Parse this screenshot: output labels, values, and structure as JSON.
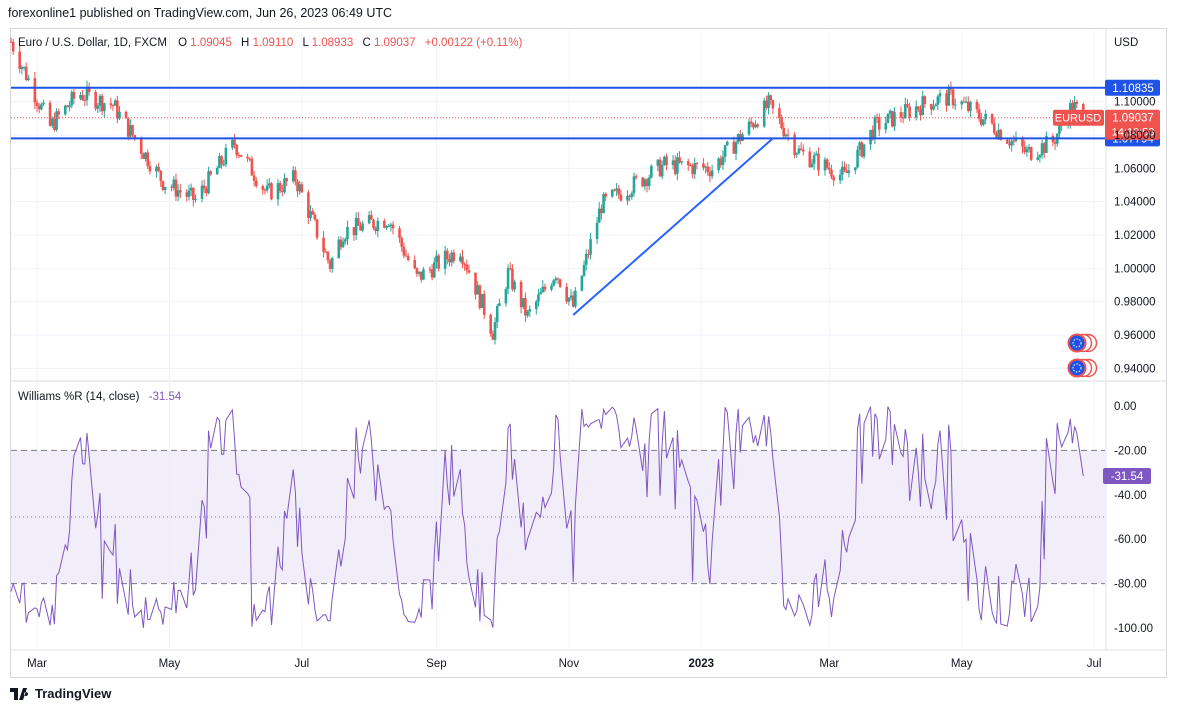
{
  "publisher_line": "forexonline1 published on TradingView.com, Jun 26, 2023 06:49 UTC",
  "symbol_line": {
    "name": "Euro / U.S. Dollar, 1D, FXCM",
    "o_label": "O",
    "o": "1.09045",
    "h_label": "H",
    "h": "1.09110",
    "l_label": "L",
    "l": "1.08933",
    "c_label": "C",
    "c": "1.09037",
    "change": "+0.00122 (+0.11%)"
  },
  "currency": "USD",
  "colors": {
    "up": "#26a69a",
    "down": "#ef5350",
    "line": "#2962ff",
    "level": "#1e53e5",
    "wpr": "#7e57c2",
    "wpr_band": "#ede7f6",
    "price_tag": "#ef5350"
  },
  "chart_data": {
    "type": "candlestick",
    "price_axis": {
      "ticks": [
        "1.10000",
        "1.08000",
        "1.06000",
        "1.04000",
        "1.02000",
        "1.00000",
        "0.98000",
        "0.96000",
        "0.94000"
      ],
      "tick_values": [
        1.1,
        1.08,
        1.06,
        1.04,
        1.02,
        1.0,
        0.98,
        0.96,
        0.94
      ]
    },
    "time_axis": [
      "Mar",
      "May",
      "Jul",
      "Sep",
      "Nov",
      "2023",
      "Mar",
      "May",
      "Jul"
    ],
    "levels": [
      {
        "value": 1.10835,
        "label": "1.10835"
      },
      {
        "value": 1.07794,
        "label": "1.07794"
      }
    ],
    "trendline": {
      "from": {
        "date": "2022-11-03",
        "price": 0.972
      },
      "to": {
        "date": "2023-02-03",
        "price": 1.078
      }
    },
    "last_price": {
      "symbol": "EURUSD",
      "price": "1.09037",
      "countdown": "14:10:53",
      "value": 1.09037
    },
    "close_path": [
      {
        "date": "2022-02-17",
        "close": 1.136
      },
      {
        "date": "2022-03-07",
        "close": 1.085
      },
      {
        "date": "2022-03-20",
        "close": 1.105
      },
      {
        "date": "2022-04-05",
        "close": 1.098
      },
      {
        "date": "2022-04-28",
        "close": 1.052
      },
      {
        "date": "2022-05-13",
        "close": 1.041
      },
      {
        "date": "2022-05-31",
        "close": 1.075
      },
      {
        "date": "2022-06-15",
        "close": 1.045
      },
      {
        "date": "2022-06-28",
        "close": 1.054
      },
      {
        "date": "2022-07-14",
        "close": 1.002
      },
      {
        "date": "2022-07-20",
        "close": 1.022
      },
      {
        "date": "2022-08-10",
        "close": 1.03
      },
      {
        "date": "2022-08-23",
        "close": 0.994
      },
      {
        "date": "2022-09-12",
        "close": 1.012
      },
      {
        "date": "2022-09-27",
        "close": 0.962
      },
      {
        "date": "2022-10-04",
        "close": 0.997
      },
      {
        "date": "2022-10-13",
        "close": 0.971
      },
      {
        "date": "2022-10-26",
        "close": 0.998
      },
      {
        "date": "2022-11-03",
        "close": 0.977
      },
      {
        "date": "2022-11-16",
        "close": 1.038
      },
      {
        "date": "2022-12-15",
        "close": 1.062
      },
      {
        "date": "2023-01-06",
        "close": 1.06
      },
      {
        "date": "2023-02-01",
        "close": 1.098
      },
      {
        "date": "2023-02-15",
        "close": 1.07
      },
      {
        "date": "2023-03-08",
        "close": 1.055
      },
      {
        "date": "2023-03-22",
        "close": 1.085
      },
      {
        "date": "2023-04-14",
        "close": 1.099
      },
      {
        "date": "2023-04-26",
        "close": 1.103
      },
      {
        "date": "2023-05-15",
        "close": 1.086
      },
      {
        "date": "2023-05-31",
        "close": 1.069
      },
      {
        "date": "2023-06-12",
        "close": 1.076
      },
      {
        "date": "2023-06-21",
        "close": 1.098
      },
      {
        "date": "2023-06-26",
        "close": 1.0904
      }
    ],
    "williams": {
      "label": "Williams %R (14, close)",
      "value": "-31.54",
      "current": -31.54,
      "ticks": [
        "0.00",
        "-20.00",
        "-40.00",
        "-60.00",
        "-80.00",
        "-100.00"
      ],
      "tick_values": [
        0,
        -20,
        -40,
        -60,
        -80,
        -100
      ],
      "overbought": -20,
      "oversold": -80,
      "middle": -50
    },
    "date_range": {
      "start": "2022-02-17",
      "end": "2023-07-06"
    },
    "ylim": [
      0.933,
      1.143
    ],
    "grid": true
  }
}
